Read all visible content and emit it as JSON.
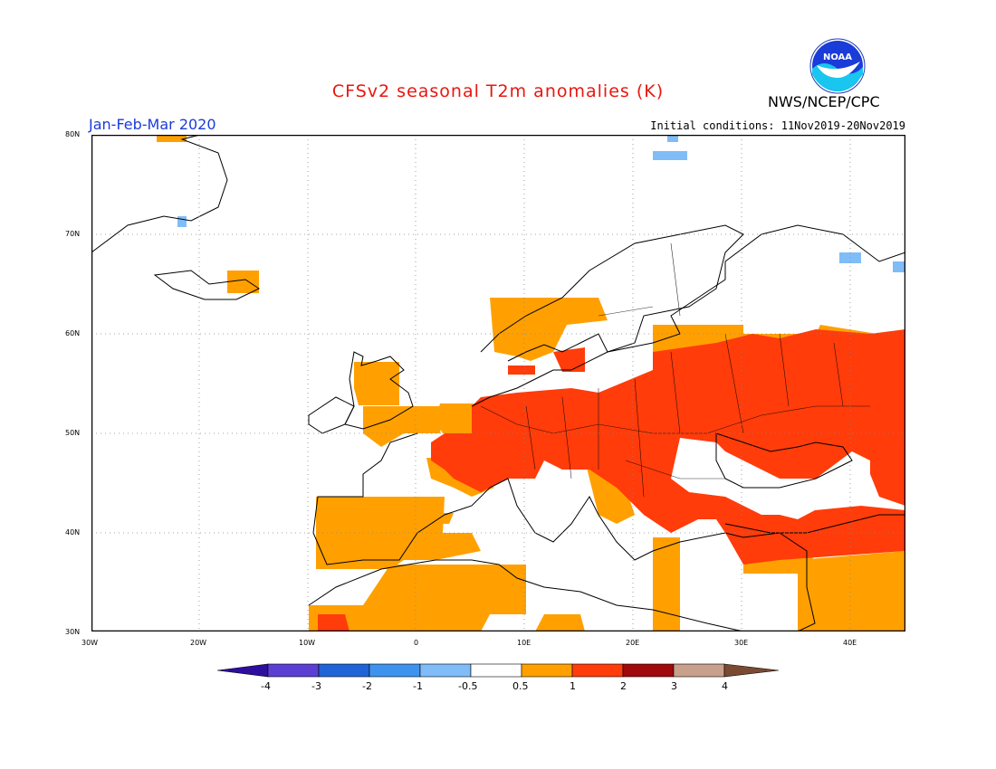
{
  "header": {
    "title": "CFSv2 seasonal T2m anomalies (K)",
    "period": "Jan-Feb-Mar 2020",
    "initial_conditions": "Initial conditions: 11Nov2019-20Nov2019",
    "agency": "NWS/NCEP/CPC",
    "logo_text": "NOAA"
  },
  "map": {
    "lat_labels": [
      "80N",
      "70N",
      "60N",
      "50N",
      "40N",
      "30N"
    ],
    "lon_labels": [
      "30W",
      "20W",
      "10W",
      "0",
      "10E",
      "20E",
      "30E",
      "40E"
    ]
  },
  "legend": {
    "labels": [
      "-4",
      "-3",
      "-2",
      "-1",
      "-0.5",
      "0.5",
      "1",
      "2",
      "3",
      "4"
    ],
    "colors": {
      "lt_-4": "#2d0e9e",
      "-4_-3": "#5b3fd3",
      "-3_-2": "#1f64d6",
      "-2_-1": "#3e93ee",
      "-1_-0.5": "#80bcf7",
      "-0.5_0.5": "#ffffff",
      "0.5_1": "#ffa000",
      "1_2": "#ff3c0a",
      "2_3": "#a00a0a",
      "3_4": "#c8a08c",
      "gt_4": "#7a4a32"
    }
  }
}
